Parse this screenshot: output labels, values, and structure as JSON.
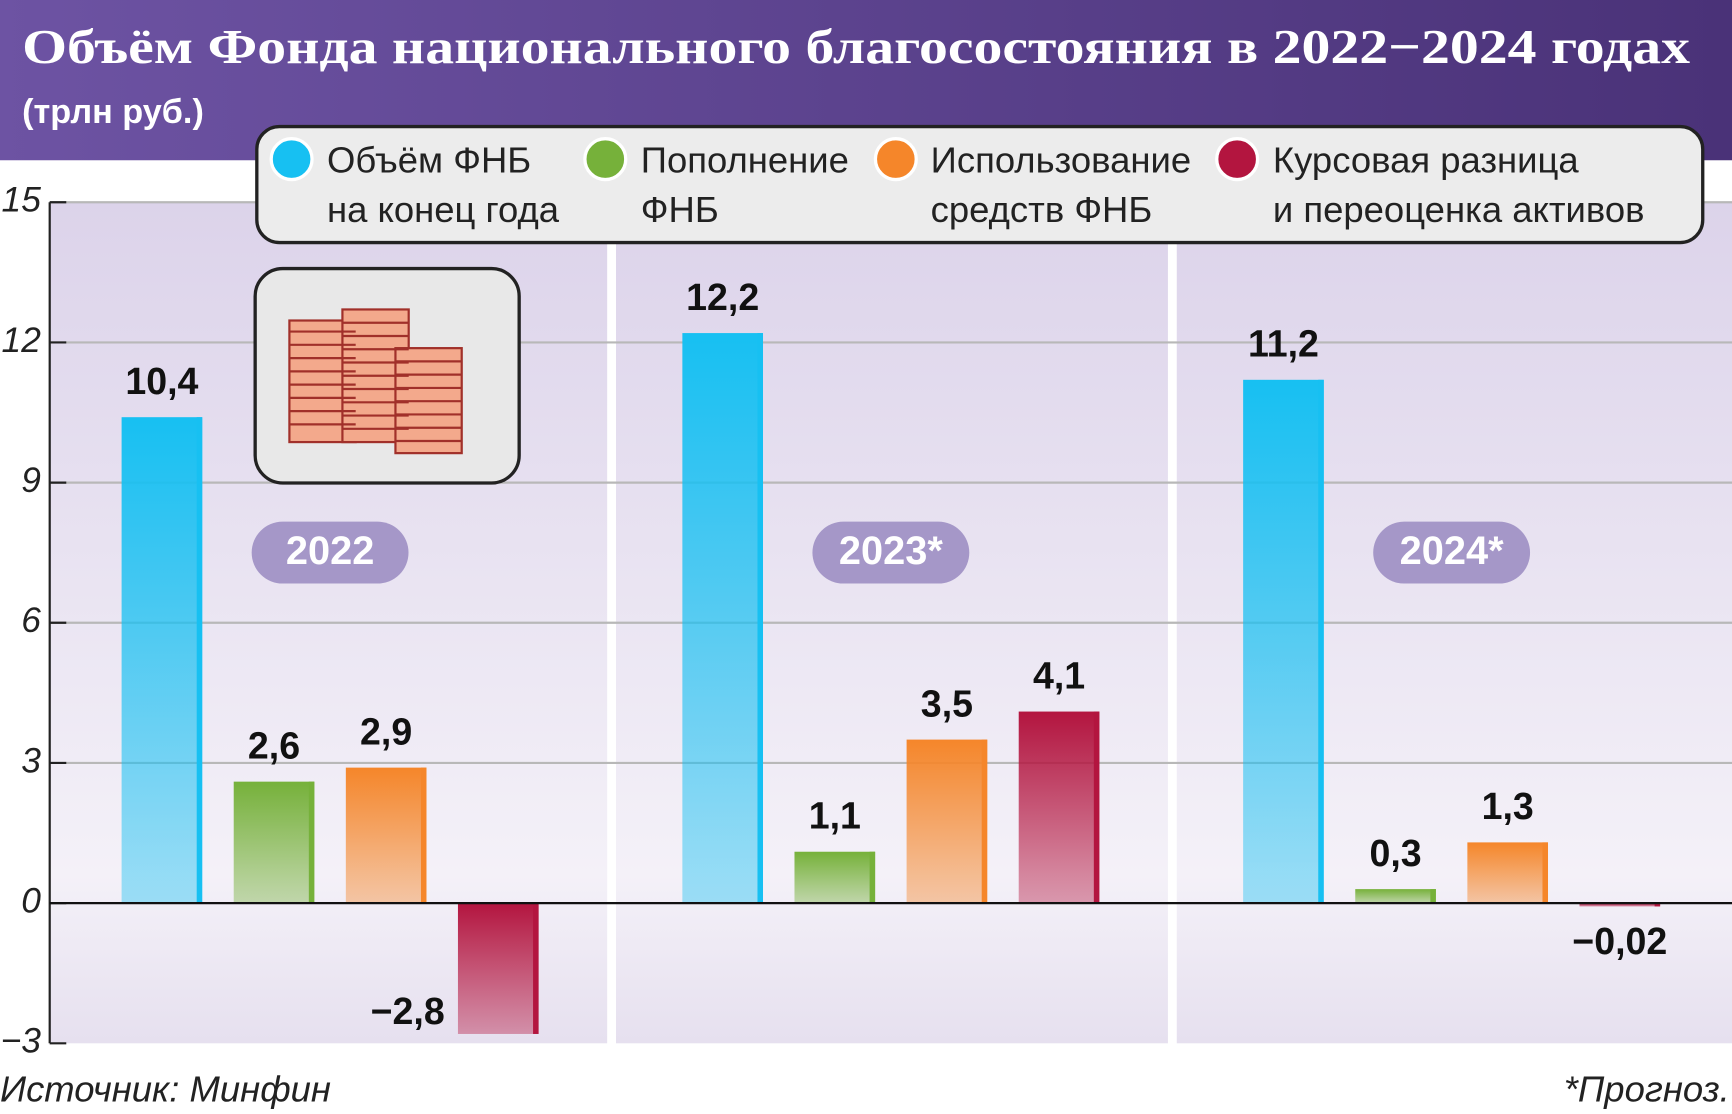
{
  "chart_data": {
    "type": "bar",
    "title": "Объём Фонда национального благосостояния в 2022−2024 годах",
    "subtitle": "(трлн руб.)",
    "categories": [
      "2022",
      "2023*",
      "2024*"
    ],
    "series": [
      {
        "name": "Объём ФНБ\nна конец года",
        "color": "#17c0f2",
        "values": [
          10.4,
          12.2,
          11.2
        ],
        "value_labels": [
          "10,4",
          "12,2",
          "11,2"
        ]
      },
      {
        "name": "Пополнение\nФНБ",
        "color": "#76b13a",
        "values": [
          2.6,
          1.1,
          0.3
        ],
        "value_labels": [
          "2,6",
          "1,1",
          "0,3"
        ]
      },
      {
        "name": "Использование\nсредств ФНБ",
        "color": "#f5862a",
        "values": [
          2.9,
          3.5,
          1.3
        ],
        "value_labels": [
          "2,9",
          "3,5",
          "1,3"
        ]
      },
      {
        "name": "Курсовая разница\nи переоценка активов",
        "color": "#b3153f",
        "values": [
          -2.8,
          4.1,
          -0.02
        ],
        "value_labels": [
          "−2,8",
          "4,1",
          "−0,02"
        ]
      }
    ],
    "ylim": [
      -3,
      15
    ],
    "yticks": [
      {
        "value": -3,
        "label": "−3"
      },
      0,
      3,
      6,
      9,
      12,
      15
    ],
    "grid": true,
    "source": "Источник: Минфин",
    "note": "*Прогноз."
  }
}
